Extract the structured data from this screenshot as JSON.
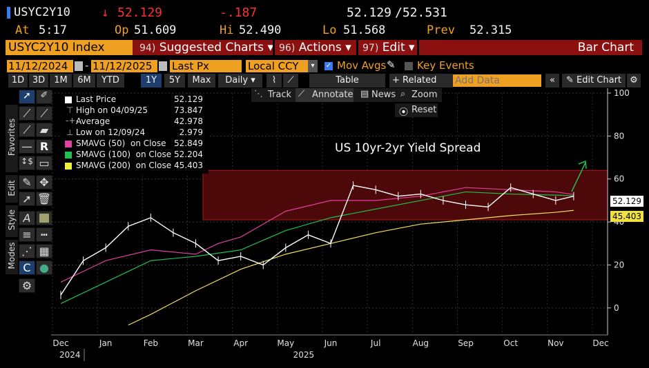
{
  "quote": {
    "ticker": "USYC2Y10",
    "arrow": "↓",
    "last": "52.129",
    "change": "-.187",
    "bid_ask_bid": "52.129",
    "bid_ask_ask": "/52.531",
    "at_label": "At",
    "at_value": "5:17",
    "op_label": "Op",
    "op_value": "51.609",
    "hi_label": "Hi",
    "hi_value": "52.490",
    "lo_label": "Lo",
    "lo_value": "51.568",
    "prev_label": "Prev",
    "prev_value": "52.315"
  },
  "command_bar": {
    "security": "USYC2Y10 Index",
    "suggested_num": "94)",
    "suggested_label": "Suggested Charts ▾",
    "actions_num": "96)",
    "actions_label": "Actions ▾",
    "edit_num": "97)",
    "edit_label": "Edit ▾",
    "chart_type": "Bar Chart"
  },
  "settings_bar": {
    "start_date": "11/12/2024",
    "end_date": "11/12/2025",
    "field": "Last Px",
    "currency": "Local CCY",
    "mov_avgs": "Mov Avgs",
    "key_events": "Key Events"
  },
  "range_bar": {
    "periods": [
      "1D",
      "3D",
      "1M",
      "6M",
      "YTD",
      "1Y",
      "5Y",
      "Max"
    ],
    "active_period": "1Y",
    "frequency": "Daily ▾",
    "table": "Table",
    "related": "+ Related Dat",
    "add_data_placeholder": "Add Data",
    "edit_chart": "Edit Chart"
  },
  "chart_tools": {
    "track": "Track",
    "annotate": "Annotate",
    "news": "News",
    "zoom": "Zoom",
    "reset": "Reset"
  },
  "side_tabs": {
    "favorites": "Favorites",
    "edit": "Edit",
    "style": "Style",
    "modes": "Modes"
  },
  "legend": [
    {
      "label": "Last Price",
      "value": "52.129",
      "color": "#ffffff"
    },
    {
      "label": "High on 04/09/25",
      "value": "73.847",
      "color": ""
    },
    {
      "label": "Average",
      "value": "42.978",
      "color": ""
    },
    {
      "label": "Low on 12/09/24",
      "value": "2.979",
      "color": ""
    },
    {
      "label": "SMAVG (50)  on Close",
      "value": "52.849",
      "color": "#e040a0"
    },
    {
      "label": "SMAVG (100)  on Close",
      "value": "52.204",
      "color": "#20c050"
    },
    {
      "label": "SMAVG (200)  on Close",
      "value": "45.403",
      "color": "#f0f040"
    }
  ],
  "chart_data": {
    "type": "line",
    "title": "US 10yr-2yr Yield Spread",
    "ylim": [
      -10,
      100
    ],
    "yticks": [
      "100",
      "80",
      "60",
      "40",
      "20",
      "0"
    ],
    "xticks": [
      "Dec",
      "Jan",
      "Feb",
      "Mar",
      "Apr",
      "May",
      "Jun",
      "Jul",
      "Aug",
      "Sep",
      "Oct",
      "Nov",
      "Dec"
    ],
    "year_labels": [
      "2024",
      "2025"
    ],
    "price_tag": "52.129",
    "sma200_tag": "45.403",
    "colors": {
      "price": "#ffffff",
      "sma50": "#e040a0",
      "sma100": "#20c050",
      "sma200": "#f0e060",
      "band": "#5a0b0b",
      "band_line": "#c02020"
    },
    "band_range": [
      41,
      64
    ],
    "series": [
      {
        "name": "Last Price",
        "x": [
          0,
          0.5,
          1,
          1.5,
          2,
          2.5,
          3,
          3.5,
          4,
          4.5,
          5,
          5.5,
          6,
          6.5,
          7,
          7.5,
          8,
          8.5,
          9,
          9.5,
          10,
          10.5,
          11,
          11.4
        ],
        "y": [
          6,
          22,
          28,
          38,
          42,
          35,
          30,
          22,
          24,
          20,
          28,
          34,
          30,
          57,
          55,
          52,
          53,
          50,
          48,
          47,
          56,
          53,
          50,
          52
        ]
      },
      {
        "name": "SMAVG (50)",
        "x": [
          0,
          1,
          2,
          3,
          3.5,
          4,
          5,
          6,
          7,
          8,
          9,
          10,
          11,
          11.4
        ],
        "y": [
          12,
          22,
          27,
          25,
          30,
          33,
          45,
          50,
          50,
          52,
          56,
          55,
          54,
          52.8
        ]
      },
      {
        "name": "SMAVG (100)",
        "x": [
          0,
          1,
          2,
          3,
          4,
          5,
          6,
          7,
          8,
          9,
          10,
          11,
          11.4
        ],
        "y": [
          2,
          12,
          22,
          24,
          27,
          36,
          42,
          46,
          50,
          54,
          53,
          52.5,
          52.2
        ]
      },
      {
        "name": "SMAVG (200)",
        "x": [
          1.5,
          2,
          3,
          4,
          5,
          6,
          7,
          8,
          9,
          10,
          11,
          11.4
        ],
        "y": [
          -8,
          -3,
          8,
          18,
          25,
          30,
          35,
          39,
          41,
          43,
          44.5,
          45.4
        ]
      }
    ]
  }
}
